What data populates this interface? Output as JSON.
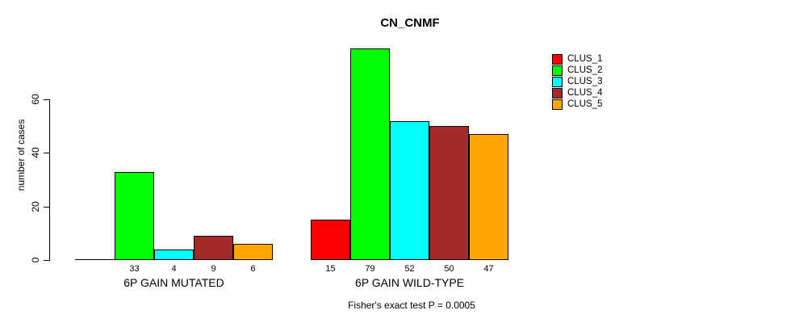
{
  "page": {
    "background": "#FFFFFF",
    "text_color": "#000000",
    "axis_color": "#000000"
  },
  "chart_data": {
    "type": "bar",
    "title": "CN_CNMF",
    "ylabel": "number of cases",
    "xlabel": "",
    "yticks": [
      0,
      20,
      40,
      60
    ],
    "ylim": [
      0,
      82
    ],
    "grid": false,
    "legend_position": "topright",
    "categories": [
      "6P GAIN MUTATED",
      "6P GAIN WILD-TYPE"
    ],
    "series": [
      {
        "name": "CLUS_1",
        "color": "#FF0000",
        "values": [
          0,
          15
        ]
      },
      {
        "name": "CLUS_2",
        "color": "#00FF00",
        "values": [
          33,
          79
        ]
      },
      {
        "name": "CLUS_3",
        "color": "#00FFFF",
        "values": [
          4,
          52
        ]
      },
      {
        "name": "CLUS_4",
        "color": "#A52A2A",
        "values": [
          9,
          50
        ]
      },
      {
        "name": "CLUS_5",
        "color": "#FFA500",
        "values": [
          6,
          47
        ]
      }
    ],
    "bar_value_labels": [
      [
        "",
        "33",
        "4",
        "9",
        "6"
      ],
      [
        "15",
        "79",
        "52",
        "50",
        "47"
      ]
    ],
    "annotation": "Fisher's exact test P = 0.0005"
  }
}
